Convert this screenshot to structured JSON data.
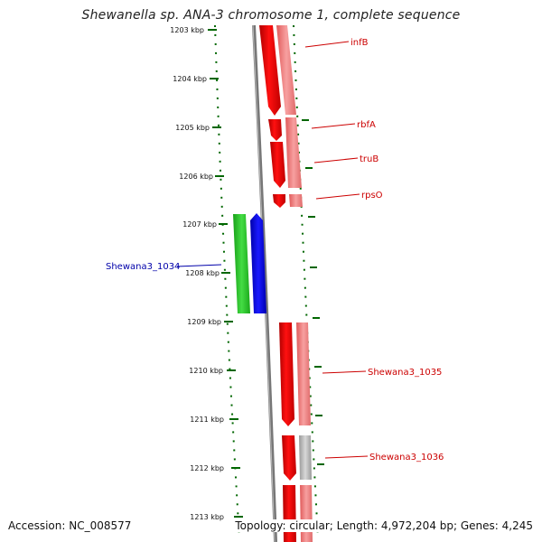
{
  "title": "Shewanella sp. ANA-3 chromosome 1, complete sequence",
  "footer": {
    "accession": "Accession: NC_008577",
    "topology": "Topology: circular; Length: 4,972,204 bp; Genes: 4,245"
  },
  "kbp_labels": [
    "1203 kbp",
    "1204 kbp",
    "1205 kbp",
    "1206 kbp",
    "1207 kbp",
    "1208 kbp",
    "1209 kbp",
    "1210 kbp",
    "1211 kbp",
    "1212 kbp",
    "1213 kbp"
  ],
  "gene_labels": [
    {
      "name": "infB",
      "color": "#cc0000"
    },
    {
      "name": "rbfA",
      "color": "#cc0000"
    },
    {
      "name": "truB",
      "color": "#cc0000"
    },
    {
      "name": "rpsO",
      "color": "#cc0000"
    },
    {
      "name": "Shewana3_1034",
      "color": "#0000aa"
    },
    {
      "name": "Shewana3_1035",
      "color": "#cc0000"
    },
    {
      "name": "Shewana3_1036",
      "color": "#cc0000"
    }
  ],
  "colors": {
    "forward_cds": "#ee0000",
    "forward_cds_light": "#f08a8a",
    "reverse_cds": "#0000ee",
    "reverse_cds_light": "#22cc22",
    "backbone": "#888888",
    "ticks": "#006600",
    "unknown_feature": "#bbbbbb"
  }
}
